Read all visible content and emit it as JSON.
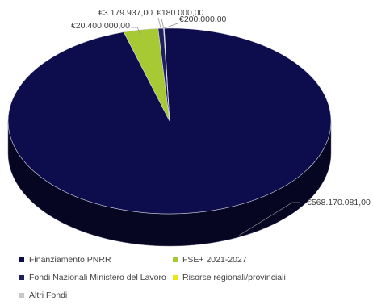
{
  "chart_data": {
    "type": "pie",
    "title": "",
    "style": "3d",
    "legend_position": "bottom",
    "slices": [
      {
        "label": "Finanziamento PNRR",
        "value": 568170081,
        "value_label": "€568.170.081,00",
        "color": "#0d0d4d"
      },
      {
        "label": "FSE+ 2021-2027",
        "value": 20400000,
        "value_label": "€20.400.000,00",
        "color": "#a6c934"
      },
      {
        "label": "Fondi Nazionali Ministero del Lavoro",
        "value": 3179937,
        "value_label": "€3.179.937,00",
        "color": "#1f1f5e"
      },
      {
        "label": "Risorse regionali/provinciali",
        "value": 180000,
        "value_label": "€180.000,00",
        "color": "#e6e61a"
      },
      {
        "label": "Altri Fondi",
        "value": 200000,
        "value_label": "€200.000,00",
        "color": "#c8c8c8"
      }
    ]
  }
}
